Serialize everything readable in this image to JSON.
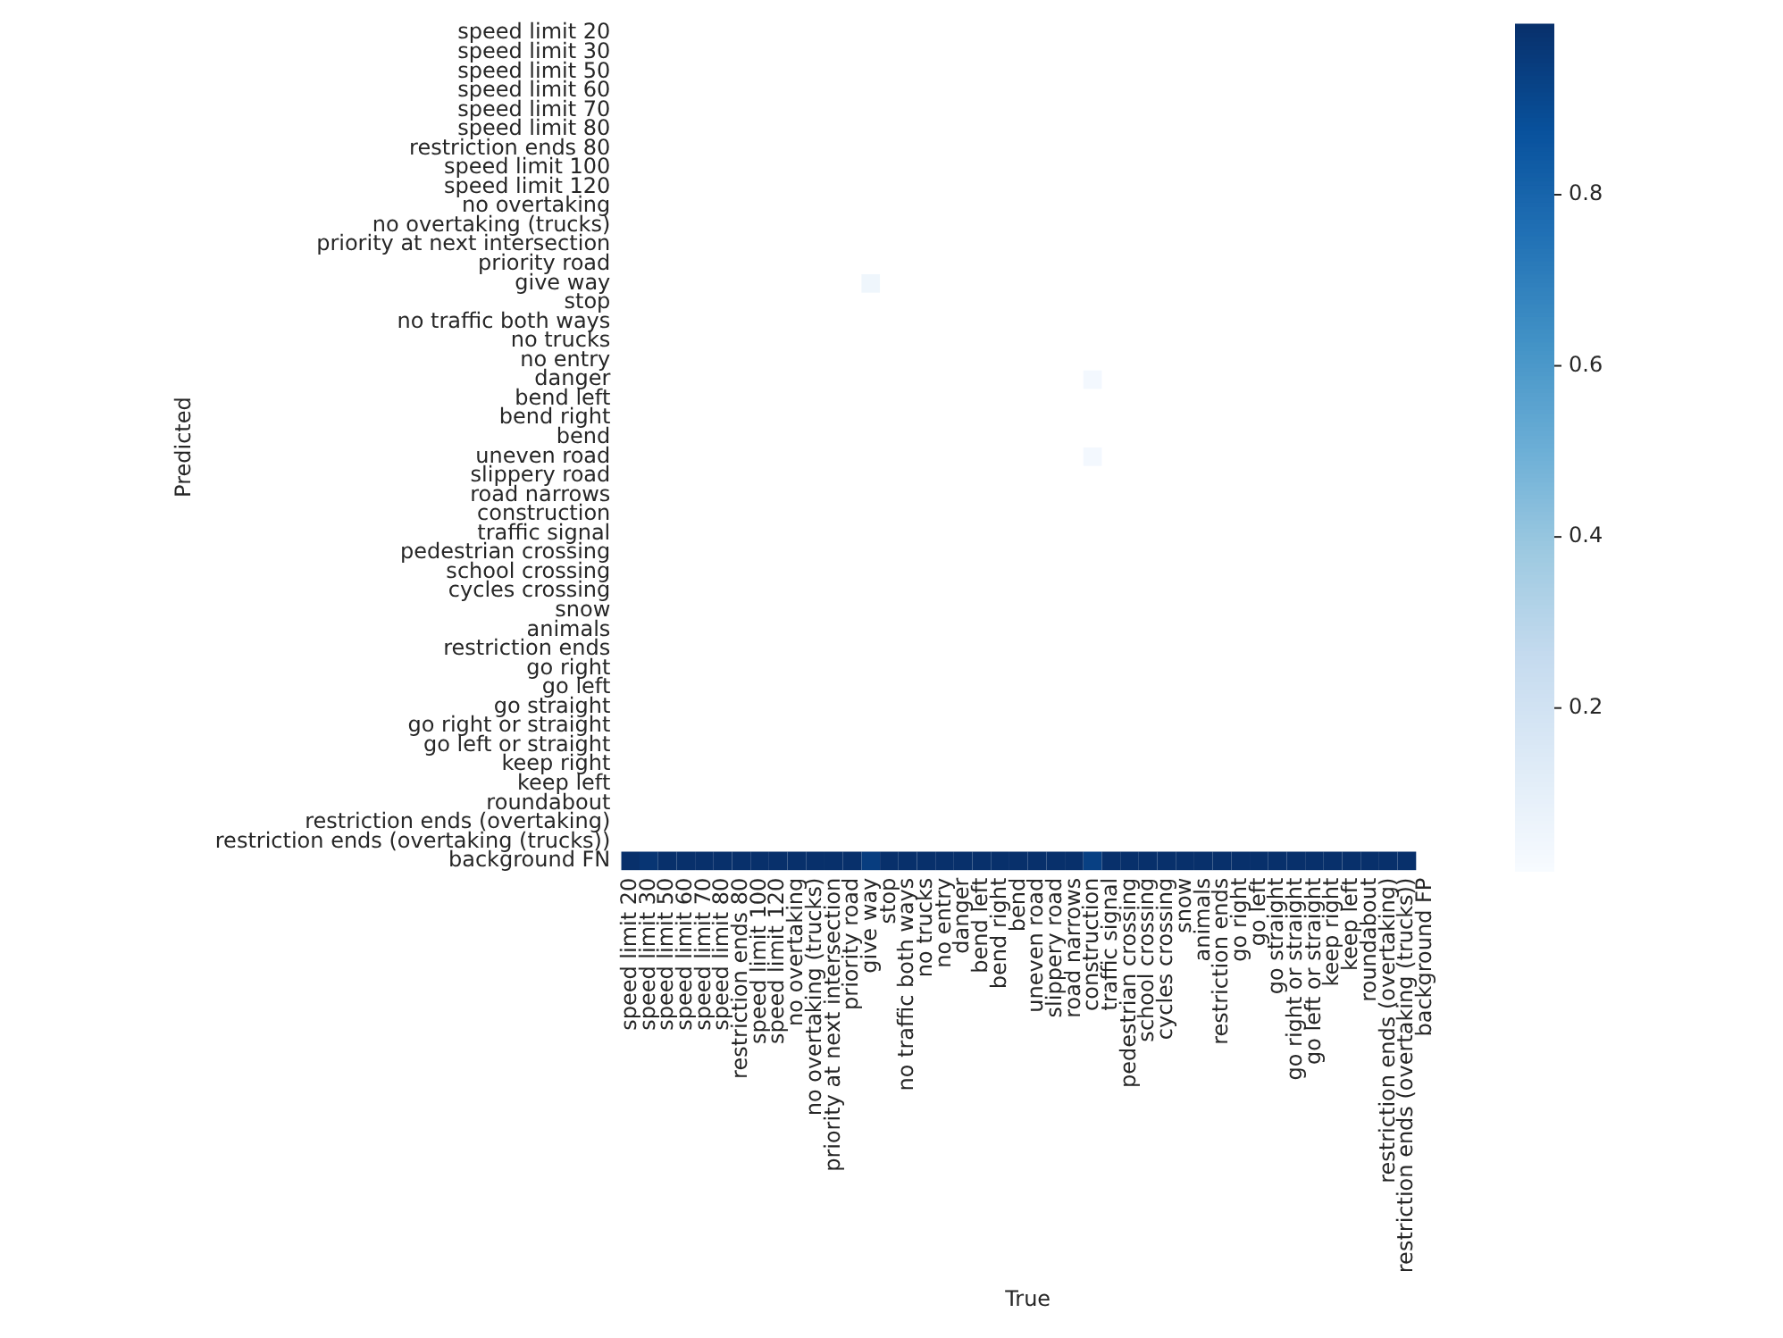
{
  "chart_data": {
    "type": "heatmap",
    "xlabel": "True",
    "ylabel": "Predicted",
    "categories": [
      "speed limit 20",
      "speed limit 30",
      "speed limit 50",
      "speed limit 60",
      "speed limit 70",
      "speed limit 80",
      "restriction ends 80",
      "speed limit 100",
      "speed limit 120",
      "no overtaking",
      "no overtaking (trucks)",
      "priority at next intersection",
      "priority road",
      "give way",
      "stop",
      "no traffic both ways",
      "no trucks",
      "no entry",
      "danger",
      "bend left",
      "bend right",
      "bend",
      "uneven road",
      "slippery road",
      "road narrows",
      "construction",
      "traffic signal",
      "pedestrian crossing",
      "school crossing",
      "cycles crossing",
      "snow",
      "animals",
      "restriction ends",
      "go right",
      "go left",
      "go straight",
      "go right or straight",
      "go left or straight",
      "keep right",
      "keep left",
      "roundabout",
      "restriction ends (overtaking)",
      "restriction ends (overtaking (trucks))",
      "background FP"
    ],
    "y_categories": [
      "speed limit 20",
      "speed limit 30",
      "speed limit 50",
      "speed limit 60",
      "speed limit 70",
      "speed limit 80",
      "restriction ends 80",
      "speed limit 100",
      "speed limit 120",
      "no overtaking",
      "no overtaking (trucks)",
      "priority at next intersection",
      "priority road",
      "give way",
      "stop",
      "no traffic both ways",
      "no trucks",
      "no entry",
      "danger",
      "bend left",
      "bend right",
      "bend",
      "uneven road",
      "slippery road",
      "road narrows",
      "construction",
      "traffic signal",
      "pedestrian crossing",
      "school crossing",
      "cycles crossing",
      "snow",
      "animals",
      "restriction ends",
      "go right",
      "go left",
      "go straight",
      "go right or straight",
      "go left or straight",
      "keep right",
      "keep left",
      "roundabout",
      "restriction ends (overtaking)",
      "restriction ends (overtaking (trucks))",
      "background FN"
    ],
    "cells": [
      [
        null,
        null,
        null,
        null,
        null,
        null,
        null,
        null,
        null,
        null,
        null,
        null,
        null,
        null,
        null,
        null,
        null,
        null,
        null,
        null,
        null,
        null,
        null,
        null,
        null,
        null,
        null,
        null,
        null,
        null,
        null,
        null,
        null,
        null,
        null,
        null,
        null,
        null,
        null,
        null,
        null,
        null,
        null,
        null
      ],
      [
        null,
        null,
        null,
        null,
        null,
        null,
        null,
        null,
        null,
        null,
        null,
        null,
        null,
        null,
        null,
        null,
        null,
        null,
        null,
        null,
        null,
        null,
        null,
        null,
        null,
        null,
        null,
        null,
        null,
        null,
        null,
        null,
        null,
        null,
        null,
        null,
        null,
        null,
        null,
        null,
        null,
        null,
        null,
        null
      ],
      [
        null,
        null,
        null,
        null,
        null,
        null,
        null,
        null,
        null,
        null,
        null,
        null,
        null,
        null,
        null,
        null,
        null,
        null,
        null,
        null,
        null,
        null,
        null,
        null,
        null,
        null,
        null,
        null,
        null,
        null,
        null,
        null,
        null,
        null,
        null,
        null,
        null,
        null,
        null,
        null,
        null,
        null,
        null,
        null
      ],
      [
        null,
        null,
        null,
        null,
        null,
        null,
        null,
        null,
        null,
        null,
        null,
        null,
        null,
        null,
        null,
        null,
        null,
        null,
        null,
        null,
        null,
        null,
        null,
        null,
        null,
        null,
        null,
        null,
        null,
        null,
        null,
        null,
        null,
        null,
        null,
        null,
        null,
        null,
        null,
        null,
        null,
        null,
        null,
        null
      ],
      [
        null,
        null,
        null,
        null,
        null,
        null,
        null,
        null,
        null,
        null,
        null,
        null,
        null,
        null,
        null,
        null,
        null,
        null,
        null,
        null,
        null,
        null,
        null,
        null,
        null,
        null,
        null,
        null,
        null,
        null,
        null,
        null,
        null,
        null,
        null,
        null,
        null,
        null,
        null,
        null,
        null,
        null,
        null,
        null
      ],
      [
        null,
        null,
        null,
        null,
        null,
        null,
        null,
        null,
        null,
        null,
        null,
        null,
        null,
        null,
        null,
        null,
        null,
        null,
        null,
        null,
        null,
        null,
        null,
        null,
        null,
        null,
        null,
        null,
        null,
        null,
        null,
        null,
        null,
        null,
        null,
        null,
        null,
        null,
        null,
        null,
        null,
        null,
        null,
        null
      ],
      [
        null,
        null,
        null,
        null,
        null,
        null,
        null,
        null,
        null,
        null,
        null,
        null,
        null,
        null,
        null,
        null,
        null,
        null,
        null,
        null,
        null,
        null,
        null,
        null,
        null,
        null,
        null,
        null,
        null,
        null,
        null,
        null,
        null,
        null,
        null,
        null,
        null,
        null,
        null,
        null,
        null,
        null,
        null,
        null
      ],
      [
        null,
        null,
        null,
        null,
        null,
        null,
        null,
        null,
        null,
        null,
        null,
        null,
        null,
        null,
        null,
        null,
        null,
        null,
        null,
        null,
        null,
        null,
        null,
        null,
        null,
        null,
        null,
        null,
        null,
        null,
        null,
        null,
        null,
        null,
        null,
        null,
        null,
        null,
        null,
        null,
        null,
        null,
        null,
        null
      ],
      [
        null,
        null,
        null,
        null,
        null,
        null,
        null,
        null,
        null,
        null,
        null,
        null,
        null,
        null,
        null,
        null,
        null,
        null,
        null,
        null,
        null,
        null,
        null,
        null,
        null,
        null,
        null,
        null,
        null,
        null,
        null,
        null,
        null,
        null,
        null,
        null,
        null,
        null,
        null,
        null,
        null,
        null,
        null,
        null
      ],
      [
        null,
        null,
        null,
        null,
        null,
        null,
        null,
        null,
        null,
        null,
        null,
        null,
        null,
        null,
        null,
        null,
        null,
        null,
        null,
        null,
        null,
        null,
        null,
        null,
        null,
        null,
        null,
        null,
        null,
        null,
        null,
        null,
        null,
        null,
        null,
        null,
        null,
        null,
        null,
        null,
        null,
        null,
        null,
        null
      ],
      [
        null,
        null,
        null,
        null,
        null,
        null,
        null,
        null,
        null,
        null,
        null,
        null,
        null,
        null,
        null,
        null,
        null,
        null,
        null,
        null,
        null,
        null,
        null,
        null,
        null,
        null,
        null,
        null,
        null,
        null,
        null,
        null,
        null,
        null,
        null,
        null,
        null,
        null,
        null,
        null,
        null,
        null,
        null,
        null
      ],
      [
        null,
        null,
        null,
        null,
        null,
        null,
        null,
        null,
        null,
        null,
        null,
        null,
        null,
        null,
        null,
        null,
        null,
        null,
        null,
        null,
        null,
        null,
        null,
        null,
        null,
        null,
        null,
        null,
        null,
        null,
        null,
        null,
        null,
        null,
        null,
        null,
        null,
        null,
        null,
        null,
        null,
        null,
        null,
        null
      ],
      [
        null,
        null,
        null,
        null,
        null,
        null,
        null,
        null,
        null,
        null,
        null,
        null,
        null,
        null,
        null,
        null,
        null,
        null,
        null,
        null,
        null,
        null,
        null,
        null,
        null,
        null,
        null,
        null,
        null,
        null,
        null,
        null,
        null,
        null,
        null,
        null,
        null,
        null,
        null,
        null,
        null,
        null,
        null,
        null
      ],
      [
        null,
        null,
        null,
        null,
        null,
        null,
        null,
        null,
        null,
        null,
        null,
        null,
        null,
        0.05,
        null,
        null,
        null,
        null,
        null,
        null,
        null,
        null,
        null,
        null,
        null,
        null,
        null,
        null,
        null,
        null,
        null,
        null,
        null,
        null,
        null,
        null,
        null,
        null,
        null,
        null,
        null,
        null,
        null,
        null
      ],
      [
        null,
        null,
        null,
        null,
        null,
        null,
        null,
        null,
        null,
        null,
        null,
        null,
        null,
        null,
        null,
        null,
        null,
        null,
        null,
        null,
        null,
        null,
        null,
        null,
        null,
        null,
        null,
        null,
        null,
        null,
        null,
        null,
        null,
        null,
        null,
        null,
        null,
        null,
        null,
        null,
        null,
        null,
        null,
        null
      ],
      [
        null,
        null,
        null,
        null,
        null,
        null,
        null,
        null,
        null,
        null,
        null,
        null,
        null,
        null,
        null,
        null,
        null,
        null,
        null,
        null,
        null,
        null,
        null,
        null,
        null,
        null,
        null,
        null,
        null,
        null,
        null,
        null,
        null,
        null,
        null,
        null,
        null,
        null,
        null,
        null,
        null,
        null,
        null,
        null
      ],
      [
        null,
        null,
        null,
        null,
        null,
        null,
        null,
        null,
        null,
        null,
        null,
        null,
        null,
        null,
        null,
        null,
        null,
        null,
        null,
        null,
        null,
        null,
        null,
        null,
        null,
        null,
        null,
        null,
        null,
        null,
        null,
        null,
        null,
        null,
        null,
        null,
        null,
        null,
        null,
        null,
        null,
        null,
        null,
        null
      ],
      [
        null,
        null,
        null,
        null,
        null,
        null,
        null,
        null,
        null,
        null,
        null,
        null,
        null,
        null,
        null,
        null,
        null,
        null,
        null,
        null,
        null,
        null,
        null,
        null,
        null,
        null,
        null,
        null,
        null,
        null,
        null,
        null,
        null,
        null,
        null,
        null,
        null,
        null,
        null,
        null,
        null,
        null,
        null,
        null
      ],
      [
        null,
        null,
        null,
        null,
        null,
        null,
        null,
        null,
        null,
        null,
        null,
        null,
        null,
        null,
        null,
        null,
        null,
        null,
        null,
        null,
        null,
        null,
        null,
        null,
        null,
        0.03,
        null,
        null,
        null,
        null,
        null,
        null,
        null,
        null,
        null,
        null,
        null,
        null,
        null,
        null,
        null,
        null,
        null,
        null
      ],
      [
        null,
        null,
        null,
        null,
        null,
        null,
        null,
        null,
        null,
        null,
        null,
        null,
        null,
        null,
        null,
        null,
        null,
        null,
        null,
        null,
        null,
        null,
        null,
        null,
        null,
        null,
        null,
        null,
        null,
        null,
        null,
        null,
        null,
        null,
        null,
        null,
        null,
        null,
        null,
        null,
        null,
        null,
        null,
        null
      ],
      [
        null,
        null,
        null,
        null,
        null,
        null,
        null,
        null,
        null,
        null,
        null,
        null,
        null,
        null,
        null,
        null,
        null,
        null,
        null,
        null,
        null,
        null,
        null,
        null,
        null,
        null,
        null,
        null,
        null,
        null,
        null,
        null,
        null,
        null,
        null,
        null,
        null,
        null,
        null,
        null,
        null,
        null,
        null,
        null
      ],
      [
        null,
        null,
        null,
        null,
        null,
        null,
        null,
        null,
        null,
        null,
        null,
        null,
        null,
        null,
        null,
        null,
        null,
        null,
        null,
        null,
        null,
        null,
        null,
        null,
        null,
        null,
        null,
        null,
        null,
        null,
        null,
        null,
        null,
        null,
        null,
        null,
        null,
        null,
        null,
        null,
        null,
        null,
        null,
        null
      ],
      [
        null,
        null,
        null,
        null,
        null,
        null,
        null,
        null,
        null,
        null,
        null,
        null,
        null,
        null,
        null,
        null,
        null,
        null,
        null,
        null,
        null,
        null,
        null,
        null,
        null,
        0.03,
        null,
        null,
        null,
        null,
        null,
        null,
        null,
        null,
        null,
        null,
        null,
        null,
        null,
        null,
        null,
        null,
        null,
        null
      ],
      [
        null,
        null,
        null,
        null,
        null,
        null,
        null,
        null,
        null,
        null,
        null,
        null,
        null,
        null,
        null,
        null,
        null,
        null,
        null,
        null,
        null,
        null,
        null,
        null,
        null,
        null,
        null,
        null,
        null,
        null,
        null,
        null,
        null,
        null,
        null,
        null,
        null,
        null,
        null,
        null,
        null,
        null,
        null,
        null
      ],
      [
        null,
        null,
        null,
        null,
        null,
        null,
        null,
        null,
        null,
        null,
        null,
        null,
        null,
        null,
        null,
        null,
        null,
        null,
        null,
        null,
        null,
        null,
        null,
        null,
        null,
        null,
        null,
        null,
        null,
        null,
        null,
        null,
        null,
        null,
        null,
        null,
        null,
        null,
        null,
        null,
        null,
        null,
        null,
        null
      ],
      [
        null,
        null,
        null,
        null,
        null,
        null,
        null,
        null,
        null,
        null,
        null,
        null,
        null,
        null,
        null,
        null,
        null,
        null,
        null,
        null,
        null,
        null,
        null,
        null,
        null,
        null,
        null,
        null,
        null,
        null,
        null,
        null,
        null,
        null,
        null,
        null,
        null,
        null,
        null,
        null,
        null,
        null,
        null,
        null
      ],
      [
        null,
        null,
        null,
        null,
        null,
        null,
        null,
        null,
        null,
        null,
        null,
        null,
        null,
        null,
        null,
        null,
        null,
        null,
        null,
        null,
        null,
        null,
        null,
        null,
        null,
        null,
        null,
        null,
        null,
        null,
        null,
        null,
        null,
        null,
        null,
        null,
        null,
        null,
        null,
        null,
        null,
        null,
        null,
        null
      ],
      [
        null,
        null,
        null,
        null,
        null,
        null,
        null,
        null,
        null,
        null,
        null,
        null,
        null,
        null,
        null,
        null,
        null,
        null,
        null,
        null,
        null,
        null,
        null,
        null,
        null,
        null,
        null,
        null,
        null,
        null,
        null,
        null,
        null,
        null,
        null,
        null,
        null,
        null,
        null,
        null,
        null,
        null,
        null,
        null
      ],
      [
        null,
        null,
        null,
        null,
        null,
        null,
        null,
        null,
        null,
        null,
        null,
        null,
        null,
        null,
        null,
        null,
        null,
        null,
        null,
        null,
        null,
        null,
        null,
        null,
        null,
        null,
        null,
        null,
        null,
        null,
        null,
        null,
        null,
        null,
        null,
        null,
        null,
        null,
        null,
        null,
        null,
        null,
        null,
        null
      ],
      [
        null,
        null,
        null,
        null,
        null,
        null,
        null,
        null,
        null,
        null,
        null,
        null,
        null,
        null,
        null,
        null,
        null,
        null,
        null,
        null,
        null,
        null,
        null,
        null,
        null,
        null,
        null,
        null,
        null,
        null,
        null,
        null,
        null,
        null,
        null,
        null,
        null,
        null,
        null,
        null,
        null,
        null,
        null,
        null
      ],
      [
        null,
        null,
        null,
        null,
        null,
        null,
        null,
        null,
        null,
        null,
        null,
        null,
        null,
        null,
        null,
        null,
        null,
        null,
        null,
        null,
        null,
        null,
        null,
        null,
        null,
        null,
        null,
        null,
        null,
        null,
        null,
        null,
        null,
        null,
        null,
        null,
        null,
        null,
        null,
        null,
        null,
        null,
        null,
        null
      ],
      [
        null,
        null,
        null,
        null,
        null,
        null,
        null,
        null,
        null,
        null,
        null,
        null,
        null,
        null,
        null,
        null,
        null,
        null,
        null,
        null,
        null,
        null,
        null,
        null,
        null,
        null,
        null,
        null,
        null,
        null,
        null,
        null,
        null,
        null,
        null,
        null,
        null,
        null,
        null,
        null,
        null,
        null,
        null,
        null
      ],
      [
        null,
        null,
        null,
        null,
        null,
        null,
        null,
        null,
        null,
        null,
        null,
        null,
        null,
        null,
        null,
        null,
        null,
        null,
        null,
        null,
        null,
        null,
        null,
        null,
        null,
        null,
        null,
        null,
        null,
        null,
        null,
        null,
        null,
        null,
        null,
        null,
        null,
        null,
        null,
        null,
        null,
        null,
        null,
        null
      ],
      [
        null,
        null,
        null,
        null,
        null,
        null,
        null,
        null,
        null,
        null,
        null,
        null,
        null,
        null,
        null,
        null,
        null,
        null,
        null,
        null,
        null,
        null,
        null,
        null,
        null,
        null,
        null,
        null,
        null,
        null,
        null,
        null,
        null,
        null,
        null,
        null,
        null,
        null,
        null,
        null,
        null,
        null,
        null,
        null
      ],
      [
        null,
        null,
        null,
        null,
        null,
        null,
        null,
        null,
        null,
        null,
        null,
        null,
        null,
        null,
        null,
        null,
        null,
        null,
        null,
        null,
        null,
        null,
        null,
        null,
        null,
        null,
        null,
        null,
        null,
        null,
        null,
        null,
        null,
        null,
        null,
        null,
        null,
        null,
        null,
        null,
        null,
        null,
        null,
        null
      ],
      [
        null,
        null,
        null,
        null,
        null,
        null,
        null,
        null,
        null,
        null,
        null,
        null,
        null,
        null,
        null,
        null,
        null,
        null,
        null,
        null,
        null,
        null,
        null,
        null,
        null,
        null,
        null,
        null,
        null,
        null,
        null,
        null,
        null,
        null,
        null,
        null,
        null,
        null,
        null,
        null,
        null,
        null,
        null,
        null
      ],
      [
        null,
        null,
        null,
        null,
        null,
        null,
        null,
        null,
        null,
        null,
        null,
        null,
        null,
        null,
        null,
        null,
        null,
        null,
        null,
        null,
        null,
        null,
        null,
        null,
        null,
        null,
        null,
        null,
        null,
        null,
        null,
        null,
        null,
        null,
        null,
        null,
        null,
        null,
        null,
        null,
        null,
        null,
        null,
        null
      ],
      [
        null,
        null,
        null,
        null,
        null,
        null,
        null,
        null,
        null,
        null,
        null,
        null,
        null,
        null,
        null,
        null,
        null,
        null,
        null,
        null,
        null,
        null,
        null,
        null,
        null,
        null,
        null,
        null,
        null,
        null,
        null,
        null,
        null,
        null,
        null,
        null,
        null,
        null,
        null,
        null,
        null,
        null,
        null,
        null
      ],
      [
        null,
        null,
        null,
        null,
        null,
        null,
        null,
        null,
        null,
        null,
        null,
        null,
        null,
        null,
        null,
        null,
        null,
        null,
        null,
        null,
        null,
        null,
        null,
        null,
        null,
        null,
        null,
        null,
        null,
        null,
        null,
        null,
        null,
        null,
        null,
        null,
        null,
        null,
        null,
        null,
        null,
        null,
        null,
        null
      ],
      [
        null,
        null,
        null,
        null,
        null,
        null,
        null,
        null,
        null,
        null,
        null,
        null,
        null,
        null,
        null,
        null,
        null,
        null,
        null,
        null,
        null,
        null,
        null,
        null,
        null,
        null,
        null,
        null,
        null,
        null,
        null,
        null,
        null,
        null,
        null,
        null,
        null,
        null,
        null,
        null,
        null,
        null,
        null,
        null
      ],
      [
        null,
        null,
        null,
        null,
        null,
        null,
        null,
        null,
        null,
        null,
        null,
        null,
        null,
        null,
        null,
        null,
        null,
        null,
        null,
        null,
        null,
        null,
        null,
        null,
        null,
        null,
        null,
        null,
        null,
        null,
        null,
        null,
        null,
        null,
        null,
        null,
        null,
        null,
        null,
        null,
        null,
        null,
        null,
        null
      ],
      [
        null,
        null,
        null,
        null,
        null,
        null,
        null,
        null,
        null,
        null,
        null,
        null,
        null,
        null,
        null,
        null,
        null,
        null,
        null,
        null,
        null,
        null,
        null,
        null,
        null,
        null,
        null,
        null,
        null,
        null,
        null,
        null,
        null,
        null,
        null,
        null,
        null,
        null,
        null,
        null,
        null,
        null,
        null,
        null
      ],
      [
        null,
        null,
        null,
        null,
        null,
        null,
        null,
        null,
        null,
        null,
        null,
        null,
        null,
        null,
        null,
        null,
        null,
        null,
        null,
        null,
        null,
        null,
        null,
        null,
        null,
        null,
        null,
        null,
        null,
        null,
        null,
        null,
        null,
        null,
        null,
        null,
        null,
        null,
        null,
        null,
        null,
        null,
        null,
        null
      ],
      [
        1.0,
        0.98,
        1.0,
        1.0,
        1.0,
        1.0,
        1.0,
        1.0,
        1.0,
        1.0,
        1.0,
        1.0,
        1.0,
        0.95,
        1.0,
        1.0,
        1.0,
        1.0,
        1.0,
        1.0,
        1.0,
        1.0,
        1.0,
        1.0,
        1.0,
        0.94,
        1.0,
        1.0,
        1.0,
        1.0,
        1.0,
        1.0,
        1.0,
        1.0,
        1.0,
        1.0,
        1.0,
        1.0,
        1.0,
        1.0,
        1.0,
        1.0,
        1.0,
        null
      ]
    ],
    "clim": [
      0.01,
      1.0
    ],
    "cticks": [
      0.2,
      0.4,
      0.6,
      0.8
    ]
  }
}
